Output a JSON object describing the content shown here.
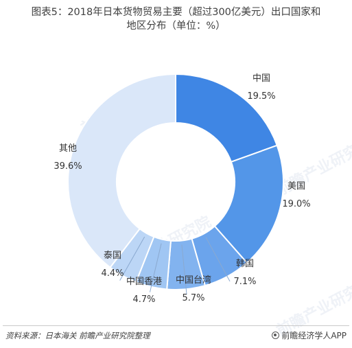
{
  "title_line1": "图表5：2018年日本货物贸易主要（超过300亿美元）出口国家和",
  "title_line2": "地区分布（单位：%）",
  "source": "资料来源：日本海关  前瞻产业研究院整理",
  "brand": "前瞻经济学人APP",
  "watermark": "前瞻产业研究院",
  "chart_data": {
    "type": "pie",
    "donut": true,
    "title": "图表5：2018年日本货物贸易主要（超过300亿美元）出口国家和地区分布（单位：%）",
    "unit": "%",
    "categories": [
      "中国",
      "美国",
      "韩国",
      "中国台湾",
      "中国香港",
      "泰国",
      "其他"
    ],
    "values": [
      19.5,
      19.0,
      7.1,
      5.7,
      4.7,
      4.4,
      39.6
    ],
    "value_labels": [
      "19.5%",
      "19.0%",
      "7.1%",
      "5.7%",
      "4.7%",
      "4.4%",
      "39.6%"
    ],
    "colors": [
      "#3f86e4",
      "#5396e8",
      "#6ba4ec",
      "#82b3ef",
      "#a0c6f3",
      "#bcd6f6",
      "#dae7f9"
    ],
    "legend": "none"
  }
}
